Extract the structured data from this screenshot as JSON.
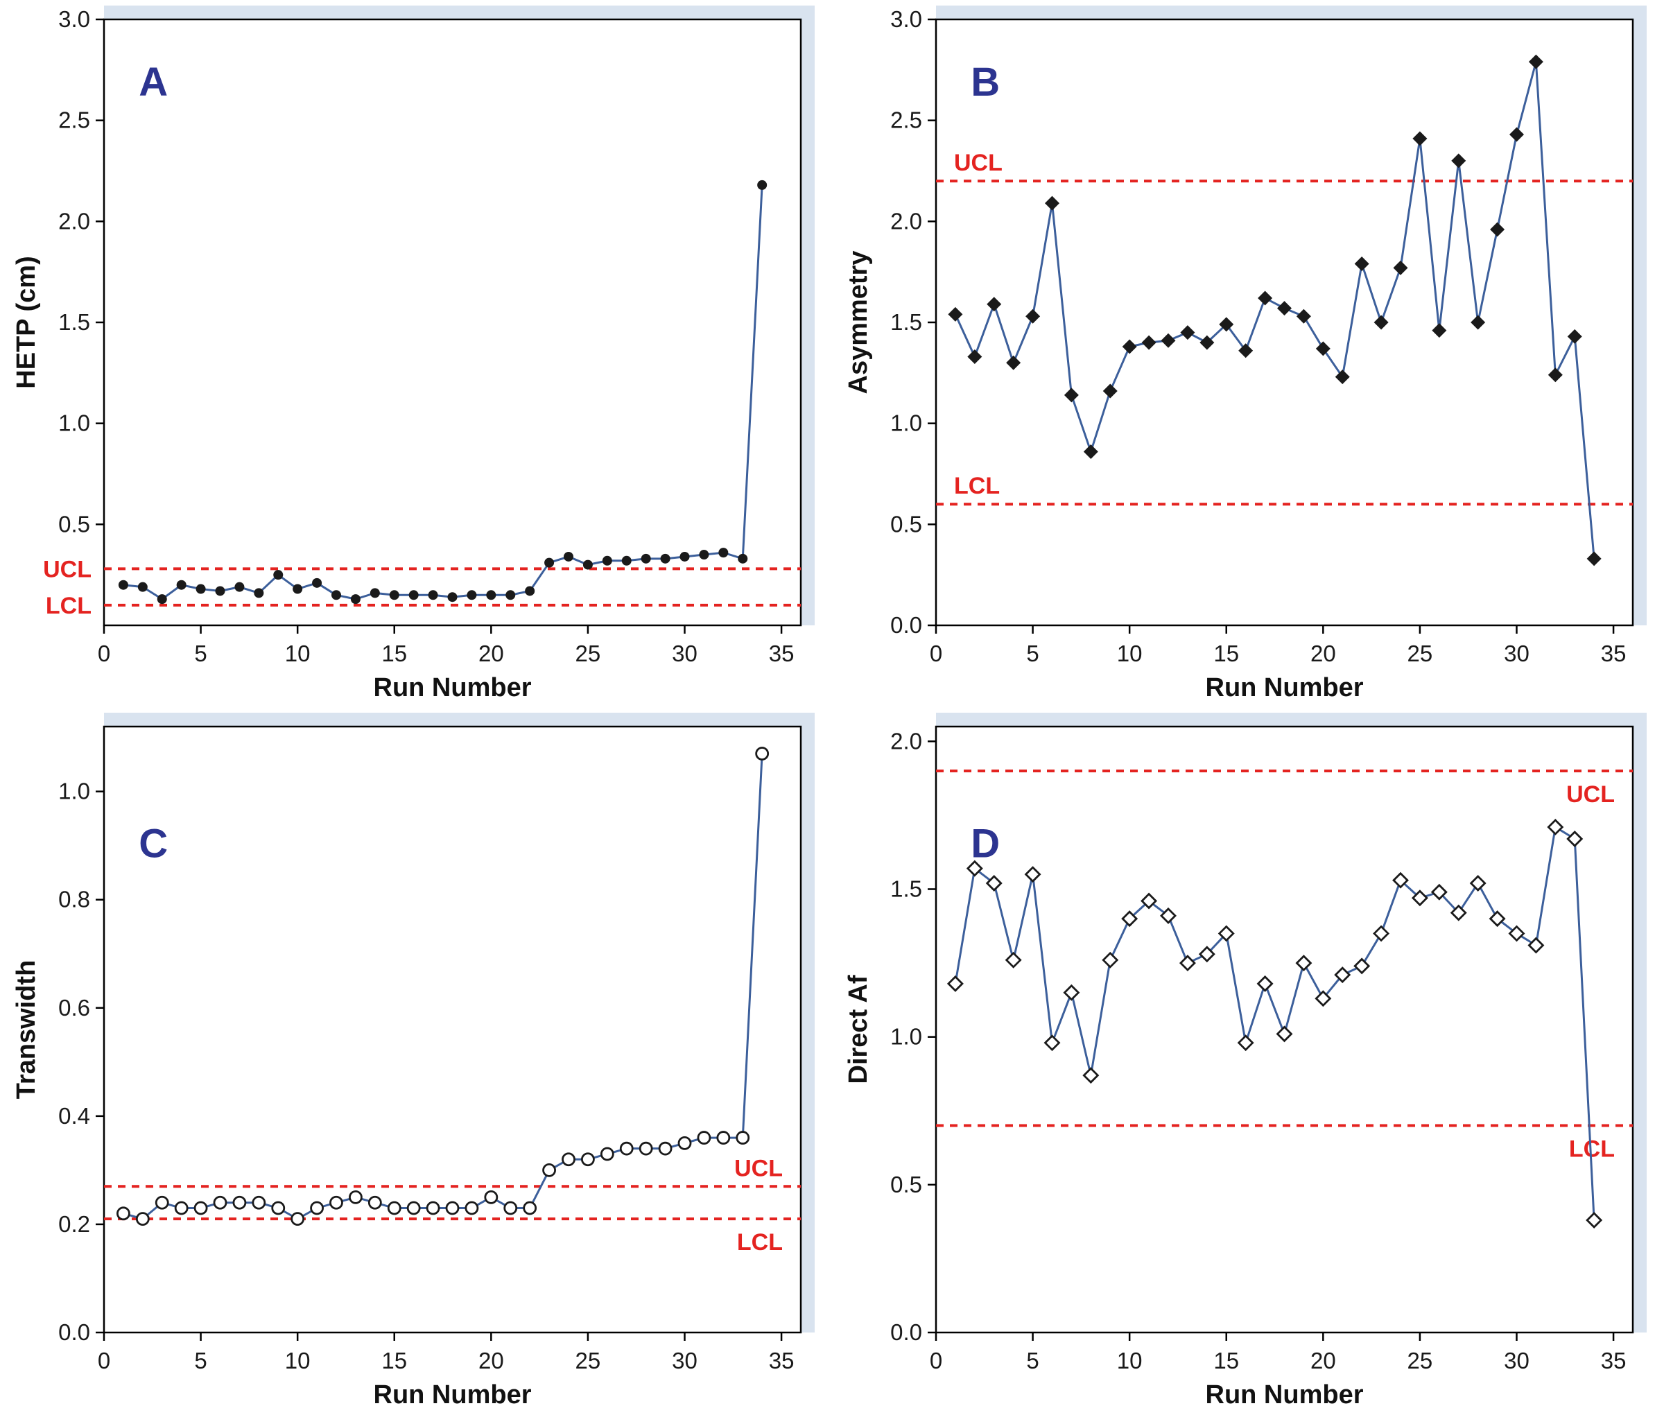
{
  "style": {
    "line_color": "#3c5f9b",
    "marker_color": "#1a1a1a",
    "limit_color": "#e42320",
    "letter_color": "#2c3490",
    "strip_color": "#d9e3ef",
    "frame_color": "#000000"
  },
  "runs": [
    1,
    2,
    3,
    4,
    5,
    6,
    7,
    8,
    9,
    10,
    11,
    12,
    13,
    14,
    15,
    16,
    17,
    18,
    19,
    20,
    21,
    22,
    23,
    24,
    25,
    26,
    27,
    28,
    29,
    30,
    31,
    32,
    33,
    34
  ],
  "chart_data": [
    {
      "type": "line",
      "panel_label": "A",
      "xlabel": "Run Number",
      "ylabel": "HETP (cm)",
      "marker": "filled-circle",
      "xlim": [
        0,
        36
      ],
      "ylim": [
        0,
        3.0
      ],
      "xticks": [
        0,
        5,
        10,
        15,
        20,
        25,
        30,
        35
      ],
      "yticks": [
        0.5,
        1.0,
        1.5,
        2.0,
        2.5,
        3.0
      ],
      "grid": false,
      "values": [
        0.2,
        0.19,
        0.13,
        0.2,
        0.18,
        0.17,
        0.19,
        0.16,
        0.25,
        0.18,
        0.21,
        0.15,
        0.13,
        0.16,
        0.15,
        0.15,
        0.15,
        0.14,
        0.15,
        0.15,
        0.15,
        0.17,
        0.31,
        0.34,
        0.3,
        0.32,
        0.32,
        0.33,
        0.33,
        0.34,
        0.35,
        0.36,
        0.33,
        2.18
      ],
      "limits": [
        {
          "label": "UCL",
          "value": 0.28,
          "label_pos": "left-out",
          "valign": "middle"
        },
        {
          "label": "LCL",
          "value": 0.1,
          "label_pos": "left-out",
          "valign": "middle"
        }
      ],
      "letter_pos": [
        0.05,
        0.08
      ]
    },
    {
      "type": "line",
      "panel_label": "B",
      "xlabel": "Run Number",
      "ylabel": "Asymmetry",
      "marker": "filled-diamond",
      "xlim": [
        0,
        36
      ],
      "ylim": [
        0,
        3.0
      ],
      "xticks": [
        0,
        5,
        10,
        15,
        20,
        25,
        30,
        35
      ],
      "yticks": [
        0.0,
        0.5,
        1.0,
        1.5,
        2.0,
        2.5,
        3.0
      ],
      "grid": false,
      "values": [
        1.54,
        1.33,
        1.59,
        1.3,
        1.53,
        2.09,
        1.14,
        0.86,
        1.16,
        1.38,
        1.4,
        1.41,
        1.45,
        1.4,
        1.49,
        1.36,
        1.62,
        1.57,
        1.53,
        1.37,
        1.23,
        1.79,
        1.5,
        1.77,
        2.41,
        1.46,
        2.3,
        1.5,
        1.96,
        2.43,
        2.79,
        1.24,
        1.43,
        0.33
      ],
      "limits": [
        {
          "label": "UCL",
          "value": 2.2,
          "label_pos": "left-in",
          "valign": "above"
        },
        {
          "label": "LCL",
          "value": 0.6,
          "label_pos": "left-in",
          "valign": "above"
        }
      ],
      "letter_pos": [
        0.05,
        0.08
      ]
    },
    {
      "type": "line",
      "panel_label": "C",
      "xlabel": "Run Number",
      "ylabel": "Transwidth",
      "marker": "open-circle",
      "xlim": [
        0,
        36
      ],
      "ylim": [
        0,
        1.12
      ],
      "xticks": [
        0,
        5,
        10,
        15,
        20,
        25,
        30,
        35
      ],
      "yticks": [
        0.0,
        0.2,
        0.4,
        0.6,
        0.8,
        1.0
      ],
      "grid": false,
      "values": [
        0.22,
        0.21,
        0.24,
        0.23,
        0.23,
        0.24,
        0.24,
        0.24,
        0.23,
        0.21,
        0.23,
        0.24,
        0.25,
        0.24,
        0.23,
        0.23,
        0.23,
        0.23,
        0.23,
        0.25,
        0.23,
        0.23,
        0.3,
        0.32,
        0.32,
        0.33,
        0.34,
        0.34,
        0.34,
        0.35,
        0.36,
        0.36,
        0.36,
        1.07
      ],
      "limits": [
        {
          "label": "UCL",
          "value": 0.27,
          "label_pos": "right-in",
          "valign": "above"
        },
        {
          "label": "LCL",
          "value": 0.21,
          "label_pos": "right-in",
          "valign": "below"
        }
      ],
      "letter_pos": [
        0.05,
        0.17
      ]
    },
    {
      "type": "line",
      "panel_label": "D",
      "xlabel": "Run Number",
      "ylabel": "Direct Af",
      "marker": "open-diamond",
      "xlim": [
        0,
        36
      ],
      "ylim": [
        0,
        2.05
      ],
      "xticks": [
        0,
        5,
        10,
        15,
        20,
        25,
        30,
        35
      ],
      "yticks": [
        0.0,
        0.5,
        1.0,
        1.5,
        2.0
      ],
      "grid": false,
      "values": [
        1.18,
        1.57,
        1.52,
        1.26,
        1.55,
        0.98,
        1.15,
        0.87,
        1.26,
        1.4,
        1.46,
        1.41,
        1.25,
        1.28,
        1.35,
        0.98,
        1.18,
        1.01,
        1.25,
        1.13,
        1.21,
        1.24,
        1.35,
        1.53,
        1.47,
        1.49,
        1.42,
        1.52,
        1.4,
        1.35,
        1.31,
        1.71,
        1.67,
        0.38
      ],
      "limits": [
        {
          "label": "UCL",
          "value": 1.9,
          "label_pos": "right-in",
          "valign": "below"
        },
        {
          "label": "LCL",
          "value": 0.7,
          "label_pos": "right-in",
          "valign": "below"
        }
      ],
      "letter_pos": [
        0.05,
        0.17
      ]
    }
  ]
}
